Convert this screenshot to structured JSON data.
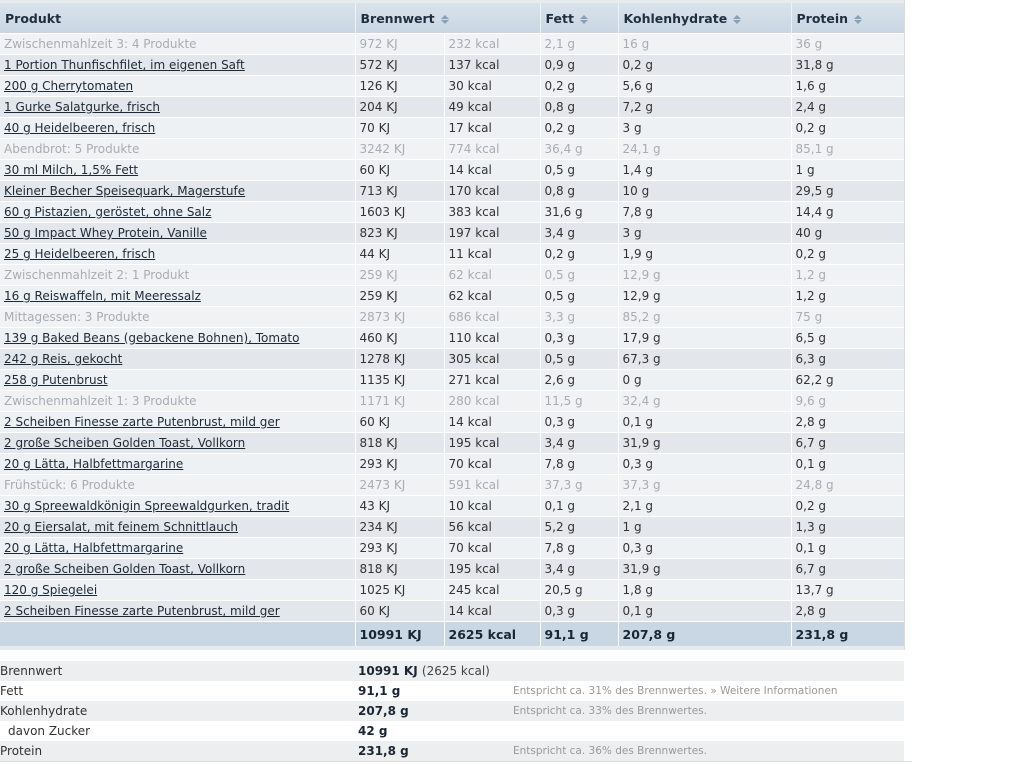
{
  "table": {
    "headers": {
      "product": "Produkt",
      "energy": "Brennwert",
      "fat": "Fett",
      "carbs": "Kohlenhydrate",
      "protein": "Protein"
    },
    "rows": [
      {
        "type": "meal",
        "name": "Zwischenmahlzeit 3: 4 Produkte",
        "kj": "972 KJ",
        "kcal": "232 kcal",
        "fat": "2,1 g",
        "carbs": "16 g",
        "protein": "36 g"
      },
      {
        "type": "item",
        "name": "1 Portion Thunfischfilet, im eigenen Saft",
        "kj": "572 KJ",
        "kcal": "137 kcal",
        "fat": "0,9 g",
        "carbs": "0,2 g",
        "protein": "31,8 g"
      },
      {
        "type": "item",
        "name": "200 g Cherrytomaten",
        "kj": "126 KJ",
        "kcal": "30 kcal",
        "fat": "0,2 g",
        "carbs": "5,6 g",
        "protein": "1,6 g"
      },
      {
        "type": "item",
        "name": "1 Gurke Salatgurke, frisch",
        "kj": "204 KJ",
        "kcal": "49 kcal",
        "fat": "0,8 g",
        "carbs": "7,2 g",
        "protein": "2,4 g"
      },
      {
        "type": "item",
        "name": "40 g Heidelbeeren, frisch",
        "kj": "70 KJ",
        "kcal": "17 kcal",
        "fat": "0,2 g",
        "carbs": "3 g",
        "protein": "0,2 g"
      },
      {
        "type": "meal",
        "name": "Abendbrot: 5 Produkte",
        "kj": "3242 KJ",
        "kcal": "774 kcal",
        "fat": "36,4 g",
        "carbs": "24,1 g",
        "protein": "85,1 g"
      },
      {
        "type": "item",
        "name": "30 ml Milch, 1,5% Fett",
        "kj": "60 KJ",
        "kcal": "14 kcal",
        "fat": "0,5 g",
        "carbs": "1,4 g",
        "protein": "1 g"
      },
      {
        "type": "item",
        "name": "Kleiner Becher Speisequark, Magerstufe",
        "kj": "713 KJ",
        "kcal": "170 kcal",
        "fat": "0,8 g",
        "carbs": "10 g",
        "protein": "29,5 g"
      },
      {
        "type": "item",
        "name": "60 g Pistazien, geröstet, ohne Salz",
        "kj": "1603 KJ",
        "kcal": "383 kcal",
        "fat": "31,6 g",
        "carbs": "7,8 g",
        "protein": "14,4 g"
      },
      {
        "type": "item",
        "name": "50 g Impact Whey Protein, Vanille",
        "kj": "823 KJ",
        "kcal": "197 kcal",
        "fat": "3,4 g",
        "carbs": "3 g",
        "protein": "40 g"
      },
      {
        "type": "item",
        "name": "25 g Heidelbeeren, frisch",
        "kj": "44 KJ",
        "kcal": "11 kcal",
        "fat": "0,2 g",
        "carbs": "1,9 g",
        "protein": "0,2 g"
      },
      {
        "type": "meal",
        "name": "Zwischenmahlzeit 2: 1 Produkt",
        "kj": "259 KJ",
        "kcal": "62 kcal",
        "fat": "0,5 g",
        "carbs": "12,9 g",
        "protein": "1,2 g"
      },
      {
        "type": "item",
        "name": "16 g Reiswaffeln, mit Meeressalz",
        "kj": "259 KJ",
        "kcal": "62 kcal",
        "fat": "0,5 g",
        "carbs": "12,9 g",
        "protein": "1,2 g"
      },
      {
        "type": "meal",
        "name": "Mittagessen: 3 Produkte",
        "kj": "2873 KJ",
        "kcal": "686 kcal",
        "fat": "3,3 g",
        "carbs": "85,2 g",
        "protein": "75 g"
      },
      {
        "type": "item",
        "name": "139 g Baked Beans (gebackene Bohnen), Tomato",
        "kj": "460 KJ",
        "kcal": "110 kcal",
        "fat": "0,3 g",
        "carbs": "17,9 g",
        "protein": "6,5 g"
      },
      {
        "type": "item",
        "name": "242 g Reis, gekocht",
        "kj": "1278 KJ",
        "kcal": "305 kcal",
        "fat": "0,5 g",
        "carbs": "67,3 g",
        "protein": "6,3 g"
      },
      {
        "type": "item",
        "name": "258 g Putenbrust",
        "kj": "1135 KJ",
        "kcal": "271 kcal",
        "fat": "2,6 g",
        "carbs": "0 g",
        "protein": "62,2 g"
      },
      {
        "type": "meal",
        "name": "Zwischenmahlzeit 1: 3 Produkte",
        "kj": "1171 KJ",
        "kcal": "280 kcal",
        "fat": "11,5 g",
        "carbs": "32,4 g",
        "protein": "9,6 g"
      },
      {
        "type": "item",
        "name": "2 Scheiben Finesse zarte Putenbrust, mild ger",
        "kj": "60 KJ",
        "kcal": "14 kcal",
        "fat": "0,3 g",
        "carbs": "0,1 g",
        "protein": "2,8 g"
      },
      {
        "type": "item",
        "name": "2 große Scheiben Golden Toast, Vollkorn",
        "kj": "818 KJ",
        "kcal": "195 kcal",
        "fat": "3,4 g",
        "carbs": "31,9 g",
        "protein": "6,7 g"
      },
      {
        "type": "item",
        "name": "20 g Lätta, Halbfettmargarine",
        "kj": "293 KJ",
        "kcal": "70 kcal",
        "fat": "7,8 g",
        "carbs": "0,3 g",
        "protein": "0,1 g"
      },
      {
        "type": "meal",
        "name": "Frühstück: 6 Produkte",
        "kj": "2473 KJ",
        "kcal": "591 kcal",
        "fat": "37,3 g",
        "carbs": "37,3 g",
        "protein": "24,8 g"
      },
      {
        "type": "item",
        "name": "30 g Spreewaldkönigin Spreewaldgurken, tradit",
        "kj": "43 KJ",
        "kcal": "10 kcal",
        "fat": "0,1 g",
        "carbs": "2,1 g",
        "protein": "0,2 g"
      },
      {
        "type": "item",
        "name": "20 g Eiersalat, mit feinem Schnittlauch",
        "kj": "234 KJ",
        "kcal": "56 kcal",
        "fat": "5,2 g",
        "carbs": "1 g",
        "protein": "1,3 g"
      },
      {
        "type": "item",
        "name": "20 g Lätta, Halbfettmargarine",
        "kj": "293 KJ",
        "kcal": "70 kcal",
        "fat": "7,8 g",
        "carbs": "0,3 g",
        "protein": "0,1 g"
      },
      {
        "type": "item",
        "name": "2 große Scheiben Golden Toast, Vollkorn",
        "kj": "818 KJ",
        "kcal": "195 kcal",
        "fat": "3,4 g",
        "carbs": "31,9 g",
        "protein": "6,7 g"
      },
      {
        "type": "item",
        "name": "120 g Spiegelei",
        "kj": "1025 KJ",
        "kcal": "245 kcal",
        "fat": "20,5 g",
        "carbs": "1,8 g",
        "protein": "13,7 g"
      },
      {
        "type": "item",
        "name": "2 Scheiben Finesse zarte Putenbrust, mild ger",
        "kj": "60 KJ",
        "kcal": "14 kcal",
        "fat": "0,3 g",
        "carbs": "0,1 g",
        "protein": "2,8 g"
      }
    ],
    "totals": {
      "kj": "10991 KJ",
      "kcal": "2625 kcal",
      "fat": "91,1 g",
      "carbs": "207,8 g",
      "protein": "231,8 g"
    }
  },
  "summary": {
    "energy_label": "Brennwert",
    "energy_value": "10991 KJ",
    "energy_sub": "(2625 kcal)",
    "fat_label": "Fett",
    "fat_value": "91,1 g",
    "fat_note": "Entspricht ca. 31% des Brennwertes.",
    "fat_link": "» Weitere Informationen",
    "carbs_label": "Kohlenhydrate",
    "carbs_value": "207,8 g",
    "carbs_note": "Entspricht ca. 33% des Brennwertes.",
    "sugar_label": "davon Zucker",
    "sugar_value": "42 g",
    "protein_label": "Protein",
    "protein_value": "231,8 g",
    "protein_note": "Entspricht ca. 36% des Brennwertes."
  },
  "colors": {
    "header_bg": "#c9d6e2",
    "total_bg": "#c9d7e4",
    "meal_text": "#a8adb2",
    "row_odd": "#eef1f4",
    "row_even": "#e3e7eb"
  },
  "icons": {
    "sort": "sort-arrows-icon"
  }
}
